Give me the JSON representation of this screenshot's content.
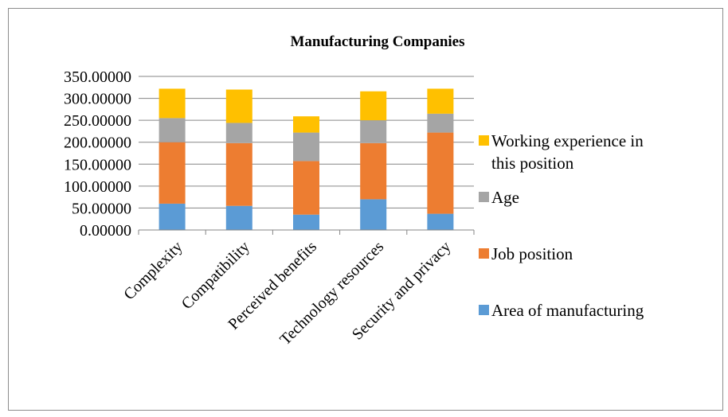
{
  "chart_data": {
    "type": "bar",
    "stacked": true,
    "title": "Manufacturing Companies",
    "xlabel": "",
    "ylabel": "",
    "ylim": [
      0,
      350
    ],
    "yticks": [
      0,
      50,
      100,
      150,
      200,
      250,
      300,
      350
    ],
    "ytick_labels": [
      "0.00000",
      "50.00000",
      "100.00000",
      "150.00000",
      "200.00000",
      "250.00000",
      "300.00000",
      "350.00000"
    ],
    "grid": true,
    "legend_position": "right",
    "categories": [
      "Complexity",
      "Compatibility",
      "Perceived benefits",
      "Technology resources",
      "Security and privacy"
    ],
    "series": [
      {
        "name": "Area of manufacturing",
        "color": "#5b9bd5",
        "values": [
          60,
          55,
          35,
          70,
          37
        ]
      },
      {
        "name": "Job position",
        "color": "#ed7d31",
        "values": [
          140,
          143,
          122,
          128,
          185
        ]
      },
      {
        "name": "Age",
        "color": "#a5a5a5",
        "values": [
          55,
          46,
          65,
          52,
          43
        ]
      },
      {
        "name": "Working experience in this position",
        "color": "#ffc000",
        "values": [
          67,
          76,
          37,
          66,
          57
        ]
      }
    ]
  }
}
